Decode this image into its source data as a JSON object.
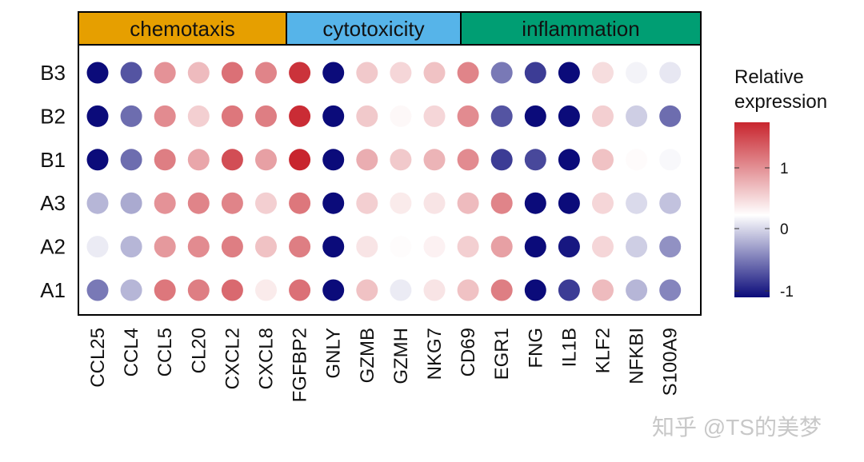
{
  "chart_data": {
    "type": "dotplot-heatmap",
    "groups": [
      {
        "name": "chemotaxis",
        "color": "#E69F00",
        "start": 0,
        "count": 6
      },
      {
        "name": "cytotoxicity",
        "color": "#56B4E9",
        "start": 6,
        "count": 5
      },
      {
        "name": "inflammation",
        "color": "#009E73",
        "start": 11,
        "count": 7
      }
    ],
    "columns": [
      "CCL25",
      "CCL4",
      "CCL5",
      "CL20",
      "CXCL2",
      "CXCL8",
      "FGFBP2",
      "GNLY",
      "GZMB",
      "GZMH",
      "NKG7",
      "CD69",
      "EGR1",
      "FNG",
      "IL1B",
      "KLF2",
      "NFKBI",
      "S100A9"
    ],
    "rows": [
      "B3",
      "B2",
      "B1",
      "A3",
      "A2",
      "A1"
    ],
    "values": [
      [
        -1.6,
        -0.7,
        0.8,
        0.5,
        1.05,
        0.9,
        1.5,
        -1.7,
        0.4,
        0.3,
        0.45,
        0.9,
        -0.55,
        -0.8,
        -1.3,
        0.25,
        -0.05,
        -0.1
      ],
      [
        -1.7,
        -0.6,
        0.85,
        0.35,
        1.0,
        0.95,
        1.55,
        -1.4,
        0.4,
        0.05,
        0.3,
        0.85,
        -0.7,
        -1.6,
        -1.0,
        0.35,
        -0.2,
        -0.6
      ],
      [
        -1.6,
        -0.6,
        0.95,
        0.65,
        1.3,
        0.7,
        1.65,
        -1.2,
        0.6,
        0.4,
        0.55,
        0.85,
        -0.8,
        -0.75,
        -1.0,
        0.45,
        0.03,
        -0.03
      ],
      [
        -0.3,
        -0.35,
        0.8,
        0.9,
        0.9,
        0.35,
        1.0,
        -1.4,
        0.35,
        0.15,
        0.2,
        0.5,
        0.9,
        -1.3,
        -1.2,
        0.3,
        -0.15,
        -0.25
      ],
      [
        -0.08,
        -0.3,
        0.75,
        0.85,
        0.95,
        0.45,
        0.95,
        -1.5,
        0.2,
        0.02,
        0.1,
        0.35,
        0.7,
        -1.7,
        -0.95,
        0.3,
        -0.2,
        -0.45
      ],
      [
        -0.55,
        -0.3,
        1.0,
        0.95,
        1.1,
        0.15,
        1.05,
        -1.4,
        0.45,
        -0.08,
        0.2,
        0.45,
        0.95,
        -1.35,
        -0.8,
        0.5,
        -0.3,
        -0.5
      ]
    ],
    "legend": {
      "title_line1": "Relative",
      "title_line2": "expression",
      "ticks": [
        "1",
        "0",
        "-1"
      ],
      "range": [
        -1,
        1.6
      ],
      "colors": {
        "low": "#0b0b7a",
        "mid": "#ffffff",
        "high": "#c8252e"
      }
    }
  },
  "watermark": "知乎 @TS的美梦"
}
